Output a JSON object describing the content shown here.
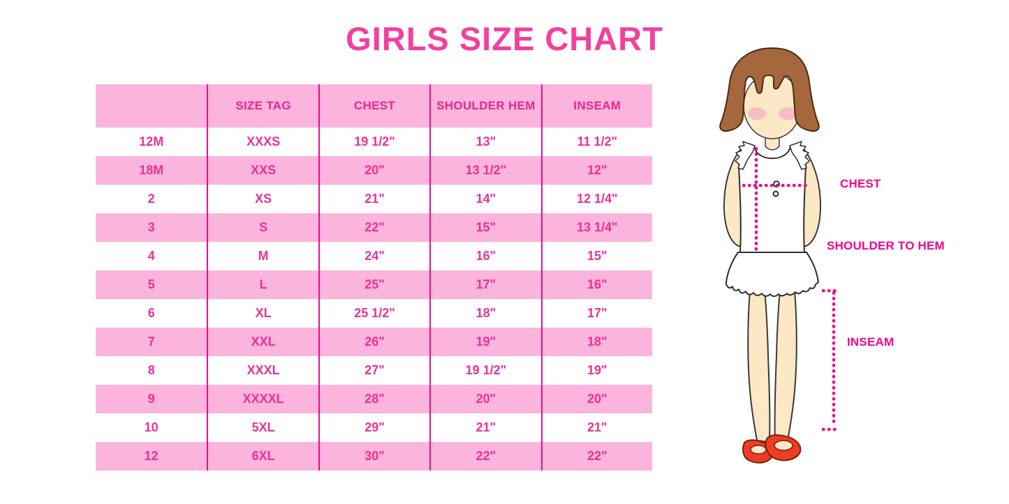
{
  "title": "GIRLS SIZE CHART",
  "colors": {
    "title_pink": "#F43F9D",
    "row_pink": "#FBB4DC",
    "grid_line_magenta": "#E90E8C",
    "table_text_pink": "#EC3195",
    "measure_magenta": "#F2058F",
    "hair_brown": "#A5673C",
    "skin": "#FCE8C5",
    "shoe_red": "#EE3D22"
  },
  "chart_data": {
    "type": "table",
    "title": "GIRLS SIZE CHART",
    "columns": [
      "",
      "SIZE TAG",
      "CHEST",
      "SHOULDER HEM",
      "INSEAM"
    ],
    "rows": [
      [
        "12M",
        "XXXS",
        "19 1/2\"",
        "13\"",
        "11 1/2\""
      ],
      [
        "18M",
        "XXS",
        "20\"",
        "13 1/2\"",
        "12\""
      ],
      [
        "2",
        "XS",
        "21\"",
        "14\"",
        "12 1/4\""
      ],
      [
        "3",
        "S",
        "22\"",
        "15\"",
        "13 1/4\""
      ],
      [
        "4",
        "M",
        "24\"",
        "16\"",
        "15\""
      ],
      [
        "5",
        "L",
        "25\"",
        "17\"",
        "16\""
      ],
      [
        "6",
        "XL",
        "25 1/2\"",
        "18\"",
        "17\""
      ],
      [
        "7",
        "XXL",
        "26\"",
        "19\"",
        "18\""
      ],
      [
        "8",
        "XXXL",
        "27\"",
        "19 1/2\"",
        "19\""
      ],
      [
        "9",
        "XXXXL",
        "28\"",
        "20\"",
        "20\""
      ],
      [
        "10",
        "5XL",
        "29\"",
        "21\"",
        "21\""
      ],
      [
        "12",
        "6XL",
        "30\"",
        "22\"",
        "22\""
      ]
    ],
    "row_striping": "header pink; data rows alternate white/pink starting white",
    "legend_position": "none",
    "grid": "vertical magenta column separators only"
  },
  "diagram": {
    "labels": {
      "chest": "CHEST",
      "shoulder_to_hem": "SHOULDER TO HEM",
      "inseam": "INSEAM"
    }
  }
}
